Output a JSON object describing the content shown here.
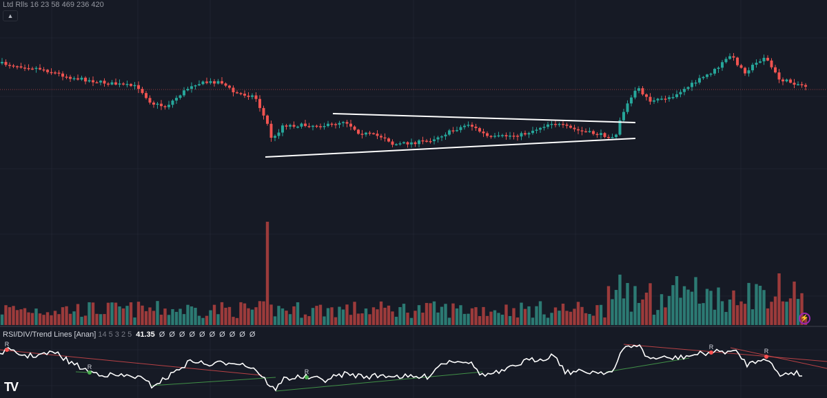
{
  "chart": {
    "legend_top": "Ltd  Rlls  16 23  58  469  236  420",
    "collapse_icon": "chevron-up-icon",
    "candle_up_color": "#26a69a",
    "candle_down_color": "#ef5350",
    "volume_up_color": "#2c7a73",
    "volume_down_color": "#9c3b3b",
    "price_line_color": "#ef5350",
    "trendline_color": "#ffffff",
    "pattern": "symmetrical triangle breakout"
  },
  "indicator": {
    "name": "RSI/DIV/Trend Lines [Anan]",
    "params": "14 5 3 2 5",
    "value": "41.35",
    "extra_values": [
      "Ø",
      "Ø",
      "Ø",
      "Ø",
      "Ø",
      "Ø",
      "Ø",
      "Ø",
      "Ø",
      "Ø"
    ],
    "divergence_label": "R",
    "line_color": "#ffffff",
    "bear_div_color": "#ff5252",
    "bull_div_color": "#4caf50"
  },
  "footer": {
    "logo_text": "TV",
    "alert_icon": "lightning-icon"
  }
}
